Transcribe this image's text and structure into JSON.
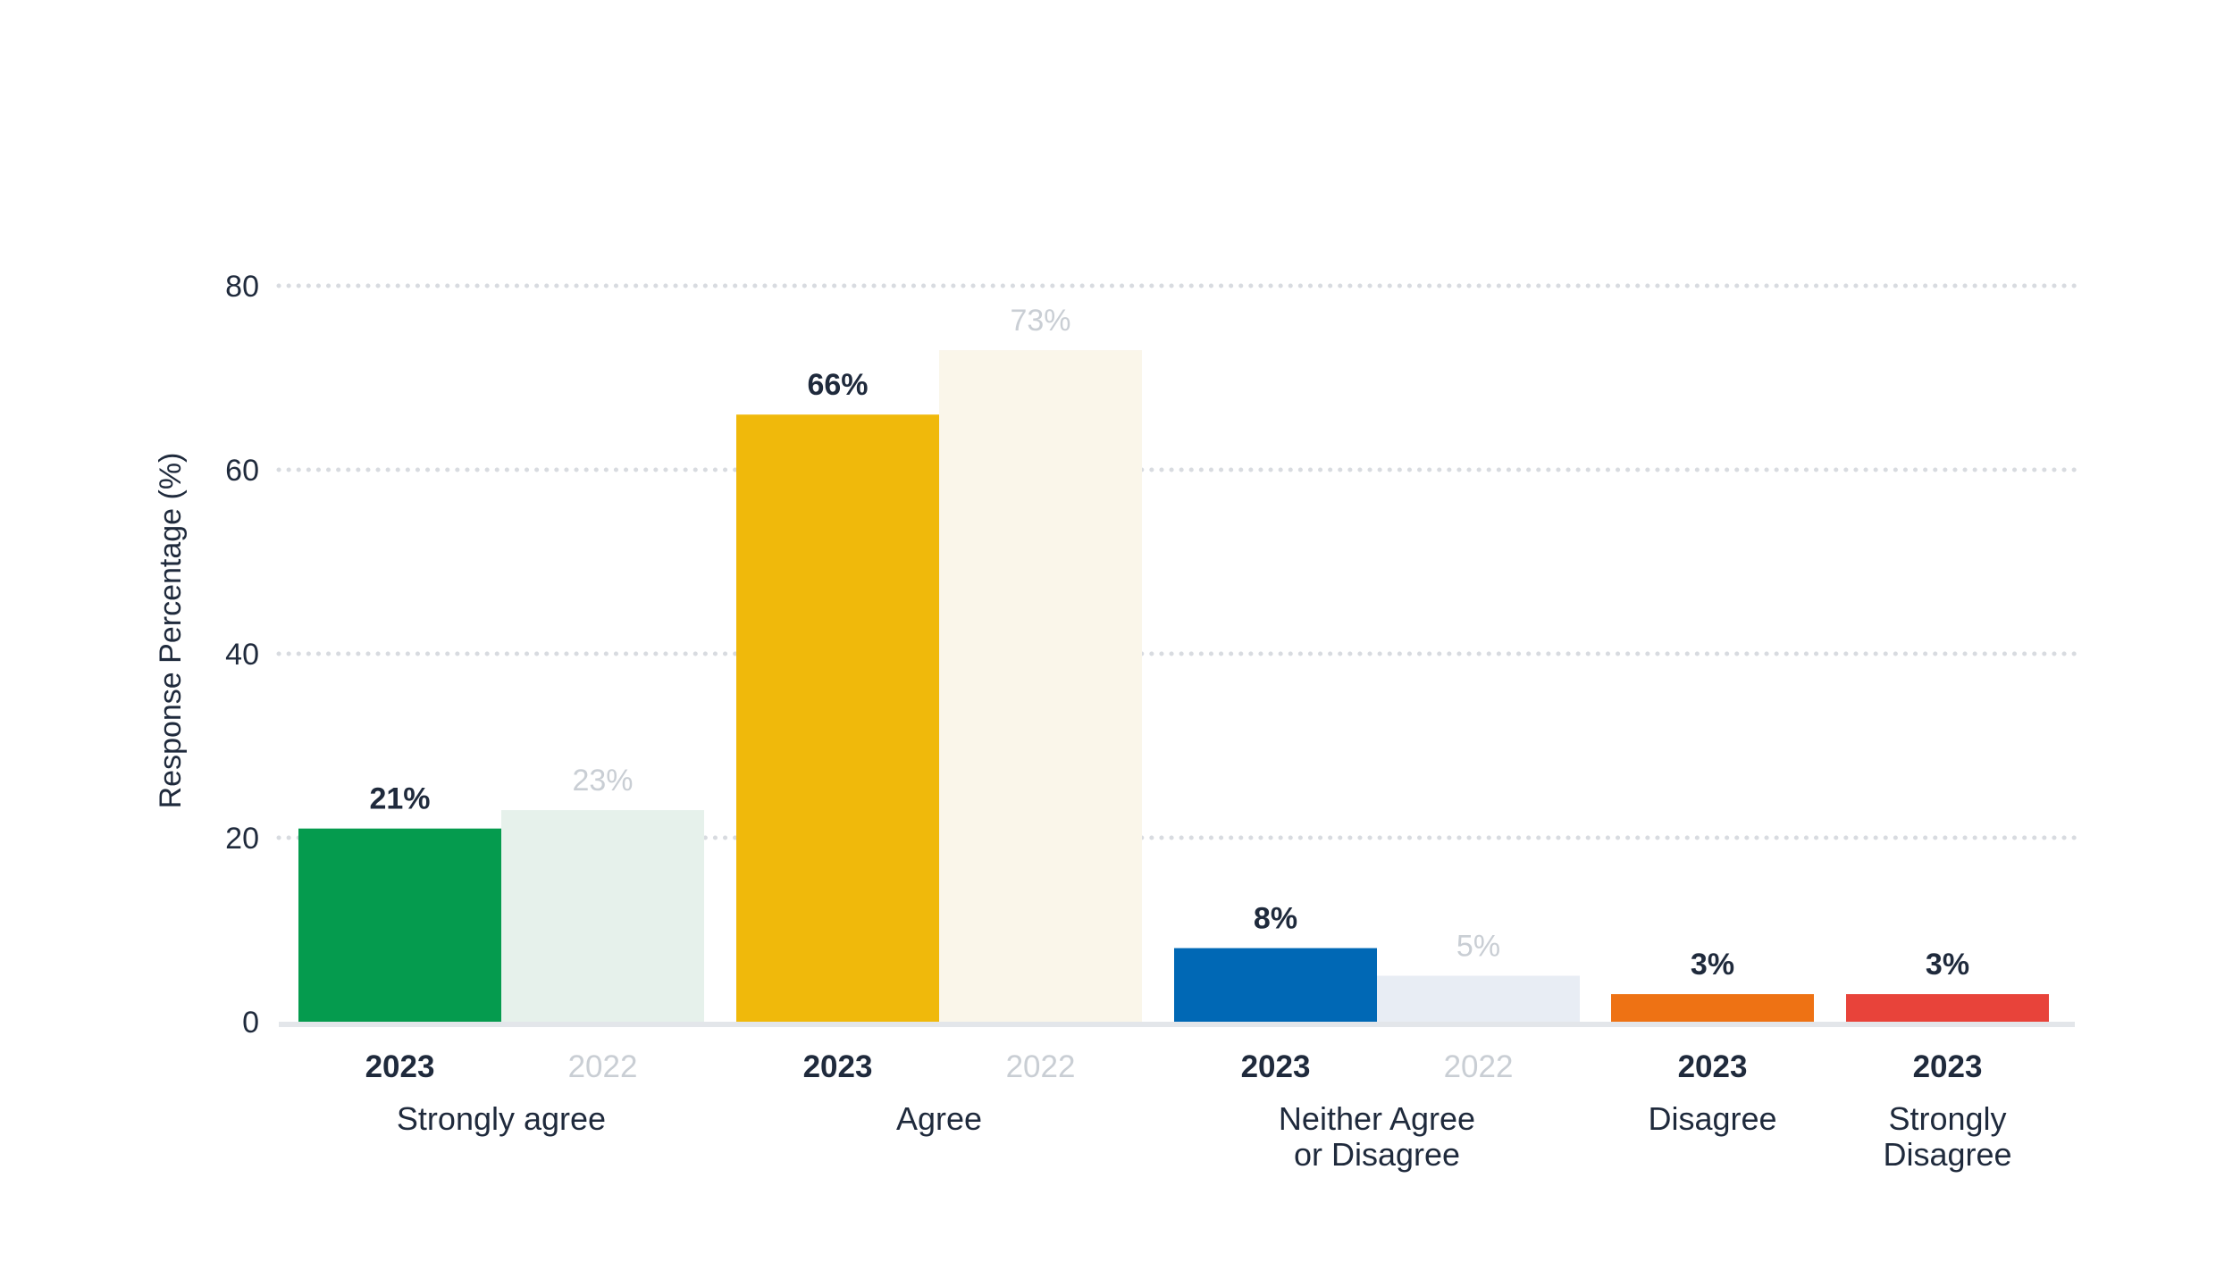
{
  "chart_data": {
    "type": "bar",
    "ylabel": "Response Percentage (%)",
    "xlabel": "",
    "ylim": [
      0,
      80
    ],
    "yticks": [
      0,
      20,
      40,
      60,
      80
    ],
    "grid": true,
    "groups": [
      {
        "category": "Strongly agree",
        "bars": [
          {
            "year": "2023",
            "value": 21,
            "label": "21%",
            "color": "#059b4e"
          },
          {
            "year": "2022",
            "value": 23,
            "label": "23%",
            "color": "#e6f1eb"
          }
        ]
      },
      {
        "category": "Agree",
        "bars": [
          {
            "year": "2023",
            "value": 66,
            "label": "66%",
            "color": "#f0b90b"
          },
          {
            "year": "2022",
            "value": 73,
            "label": "73%",
            "color": "#faf6ea"
          }
        ]
      },
      {
        "category": "Neither Agree or Disagree",
        "category_lines": [
          "Neither Agree",
          "or Disagree"
        ],
        "bars": [
          {
            "year": "2023",
            "value": 8,
            "label": "8%",
            "color": "#0068b5"
          },
          {
            "year": "2022",
            "value": 5,
            "label": "5%",
            "color": "#e8edf4"
          }
        ]
      },
      {
        "category": "Disagree",
        "bars": [
          {
            "year": "2023",
            "value": 3,
            "label": "3%",
            "color": "#ee7214"
          }
        ]
      },
      {
        "category": "Strongly Disagree",
        "category_lines": [
          "Strongly",
          "Disagree"
        ],
        "bars": [
          {
            "year": "2023",
            "value": 3,
            "label": "3%",
            "color": "#e8433a"
          }
        ]
      }
    ]
  }
}
